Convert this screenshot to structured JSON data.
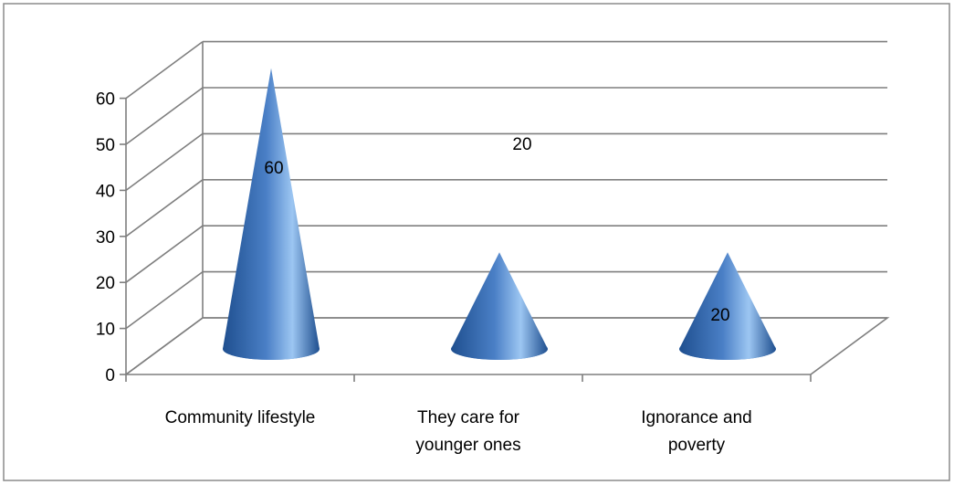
{
  "chart_data": {
    "type": "bar",
    "shape": "cone",
    "three_d": true,
    "categories": [
      [
        "Community lifestyle"
      ],
      [
        "They care for",
        "younger ones"
      ],
      [
        "Ignorance and",
        "poverty"
      ]
    ],
    "values": [
      60,
      20,
      20
    ],
    "data_labels": [
      "60",
      "20",
      "20"
    ],
    "ylim": [
      0,
      60
    ],
    "yticks": [
      0,
      10,
      20,
      30,
      40,
      50,
      60
    ],
    "grid": true,
    "legend": "none",
    "colors": {
      "cone_dark": "#1f4f8f",
      "cone_mid": "#4a7fc6",
      "cone_light": "#9cc6f2",
      "grid": "#7f7f7f",
      "border": "#8c8c8c"
    }
  }
}
